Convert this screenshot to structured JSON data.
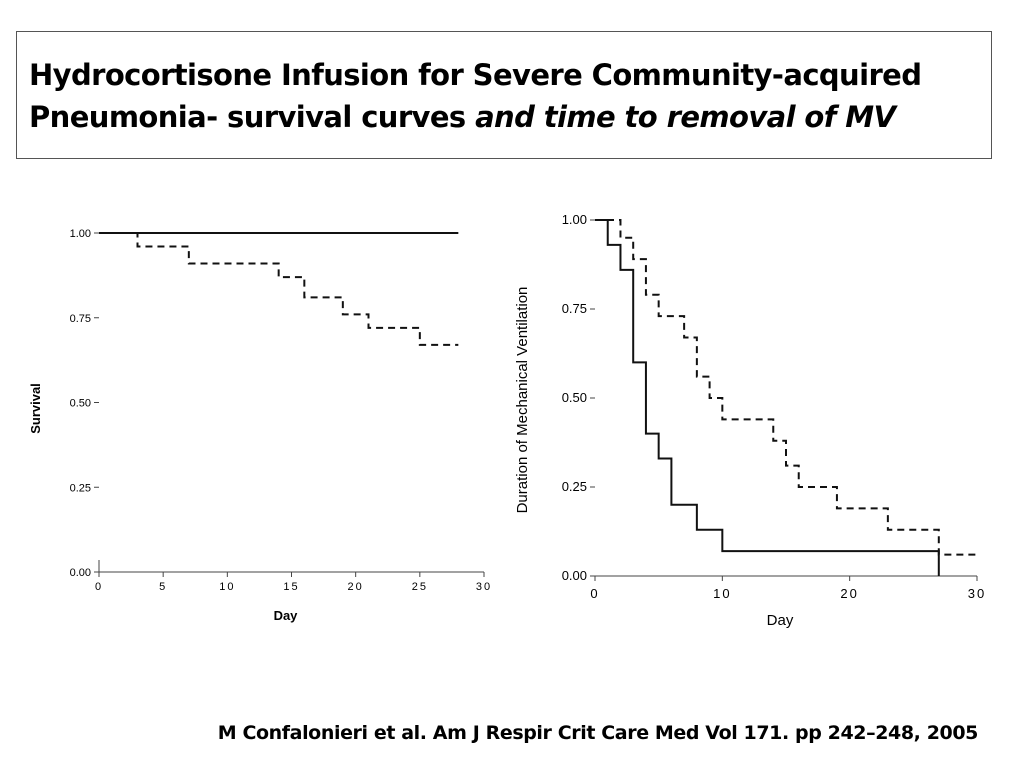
{
  "slide": {
    "title_plain": "Hydrocortisone Infusion for Severe Community-acquired Pneumonia- survival curves ",
    "title_italic": "and time to removal of MV",
    "citation": "M Confalonieri et al. Am J Respir Crit Care Med Vol 171. pp 242–248, 2005"
  },
  "chart_data": [
    {
      "type": "line",
      "step": true,
      "xlabel": "Day",
      "ylabel": "Survival",
      "xlim": [
        0,
        30
      ],
      "ylim": [
        0,
        1
      ],
      "x_ticks": [
        "0",
        "5",
        "10",
        "15",
        "20",
        "25",
        "30"
      ],
      "y_ticks": [
        "0.00",
        "0.25",
        "0.50",
        "0.75",
        "1.00"
      ],
      "series": [
        {
          "style": "solid",
          "x": [
            0,
            28
          ],
          "y": [
            1.0,
            1.0
          ]
        },
        {
          "style": "dashed",
          "x": [
            0,
            3,
            7,
            14,
            16,
            19,
            21,
            25,
            28
          ],
          "y": [
            1.0,
            0.96,
            0.91,
            0.87,
            0.81,
            0.76,
            0.72,
            0.67,
            0.67
          ]
        }
      ]
    },
    {
      "type": "line",
      "step": true,
      "xlabel": "Day",
      "ylabel": "Duration of Mechanical Ventilation",
      "xlim": [
        0,
        30
      ],
      "ylim": [
        0,
        1
      ],
      "x_ticks": [
        "0",
        "10",
        "20",
        "30"
      ],
      "y_ticks": [
        "0.00",
        "0.25",
        "0.50",
        "0.75",
        "1.00"
      ],
      "series": [
        {
          "style": "solid",
          "x": [
            0,
            1,
            2,
            3,
            4,
            5,
            6,
            8,
            10,
            27,
            27
          ],
          "y": [
            1.0,
            0.93,
            0.86,
            0.6,
            0.4,
            0.33,
            0.2,
            0.13,
            0.07,
            0.07,
            0.0
          ]
        },
        {
          "style": "dashed",
          "x": [
            0,
            2,
            3,
            4,
            5,
            7,
            8,
            9,
            10,
            14,
            15,
            16,
            19,
            23,
            27,
            30
          ],
          "y": [
            1.0,
            0.95,
            0.89,
            0.79,
            0.73,
            0.67,
            0.56,
            0.5,
            0.44,
            0.38,
            0.31,
            0.25,
            0.19,
            0.13,
            0.06,
            0.06
          ]
        }
      ]
    }
  ]
}
